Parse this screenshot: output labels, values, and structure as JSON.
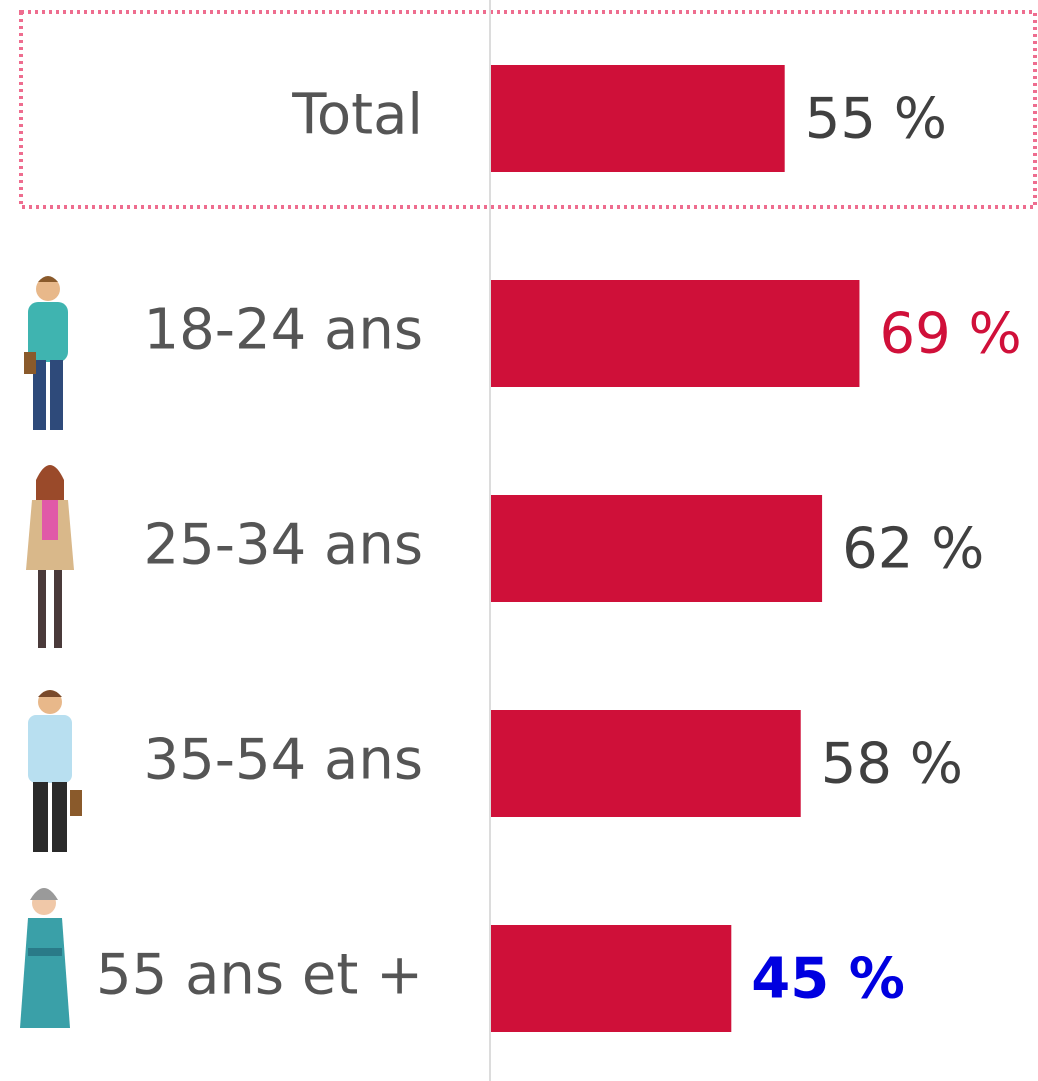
{
  "chart_data": {
    "type": "bar",
    "orientation": "horizontal",
    "categories": [
      "Total",
      "18-24 ans",
      "25-34 ans",
      "35-54 ans",
      "55 ans et +"
    ],
    "values": [
      55,
      69,
      62,
      58,
      45
    ],
    "value_labels": [
      "55 %",
      "69 %",
      "62 %",
      "58 %",
      "45 %"
    ],
    "value_label_colors": [
      "#404040",
      "#d0103a",
      "#404040",
      "#404040",
      "#0000e0"
    ],
    "value_label_bold": [
      false,
      false,
      false,
      false,
      true
    ],
    "color": "#cf1039"
  }
}
